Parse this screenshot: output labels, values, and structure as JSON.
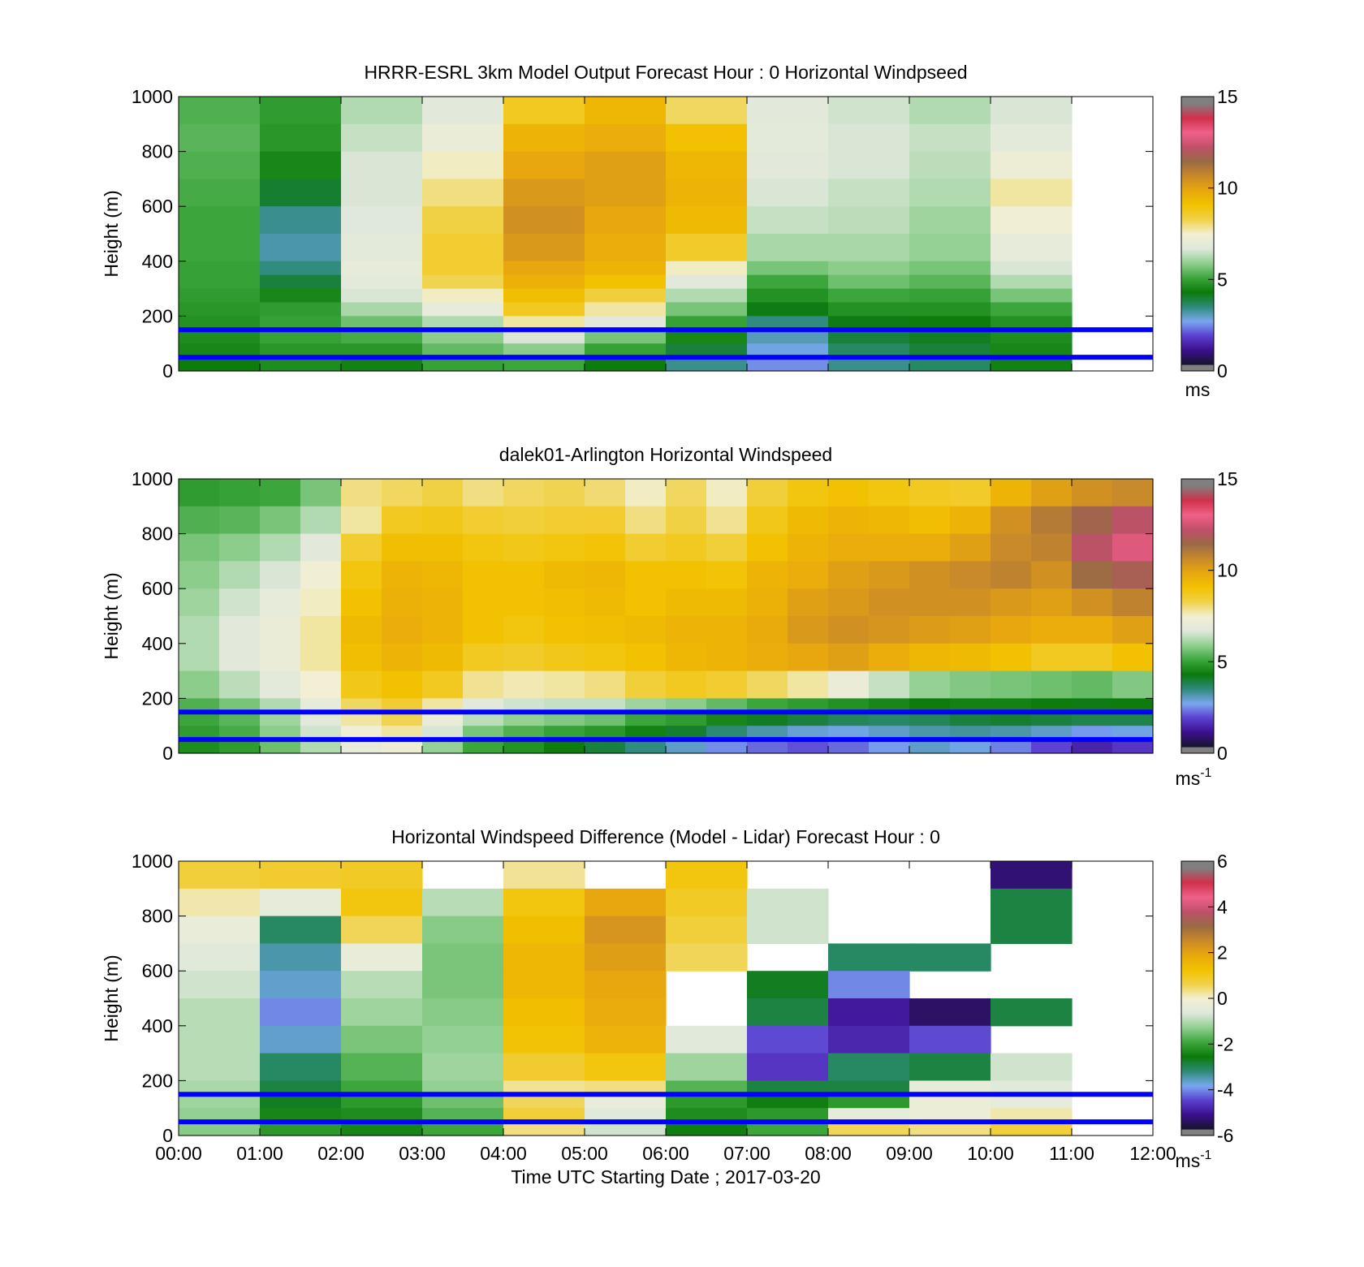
{
  "figure": {
    "x_ticks": [
      "00:00",
      "01:00",
      "02:00",
      "03:00",
      "04:00",
      "05:00",
      "06:00",
      "07:00",
      "08:00",
      "09:00",
      "10:00",
      "11:00",
      "12:00"
    ],
    "xlabel": "Time UTC  Starting Date ; 2017-03-20"
  },
  "colors": {
    "height_marker_line": "#0000ff",
    "windspeed_colormap": [
      "#15152a",
      "#3b0f8c",
      "#5b3fd0",
      "#7aa7f0",
      "#2e8b7a",
      "#0b7a0b",
      "#3ca63c",
      "#8fcf8f",
      "#dfe8dc",
      "#f2efd4",
      "#f0d24a",
      "#f2c200",
      "#e8a70e",
      "#c8892a",
      "#9a6a46",
      "#c0506a",
      "#f06088",
      "#d0304a",
      "#808080"
    ],
    "difference_colormap": [
      "#15152a",
      "#3b0f8c",
      "#5b3fd0",
      "#7aa7f0",
      "#2e8b7a",
      "#0b7a0b",
      "#3ca63c",
      "#8fcf8f",
      "#dfe8dc",
      "#f2efd4",
      "#f0d24a",
      "#f2c200",
      "#e8a70e",
      "#c8892a",
      "#9a6a46",
      "#c0506a",
      "#f06088",
      "#d0304a",
      "#808080"
    ]
  },
  "chart_data": [
    {
      "type": "heatmap",
      "title": "HRRR-ESRL 3km Model Output   Forecast Hour : 0 Horizontal Windpseed",
      "ylabel": "Height (m)",
      "ylim": [
        0,
        1000
      ],
      "yticks": [
        "0",
        "200",
        "400",
        "600",
        "800",
        "1000"
      ],
      "xlim": [
        0,
        12
      ],
      "colorbar": {
        "min": 0,
        "max": 15,
        "ticks": [
          "0",
          "5",
          "10",
          "15"
        ],
        "unit": "ms"
      },
      "marker_lines_height_m": [
        150,
        50
      ],
      "x_start_hours": [
        0,
        1,
        2,
        3,
        4,
        5,
        6,
        7,
        8,
        9,
        10
      ],
      "x_step_hours": 1,
      "y_top_m": [
        1000,
        900,
        800,
        700,
        600,
        500,
        400,
        350,
        300,
        250,
        200,
        150,
        100,
        50
      ],
      "values": [
        [
          5.2,
          4.8,
          6.2,
          6.8,
          8.8,
          9.5,
          8.2,
          6.8,
          6.5,
          6.2,
          6.6
        ],
        [
          5.3,
          4.7,
          6.4,
          7.2,
          9.6,
          9.8,
          9.2,
          6.9,
          6.6,
          6.4,
          6.9
        ],
        [
          5.2,
          4.4,
          6.6,
          7.6,
          10.0,
          10.2,
          9.5,
          6.8,
          6.6,
          6.3,
          7.3
        ],
        [
          5.1,
          3.9,
          6.6,
          8.0,
          10.4,
          10.2,
          9.6,
          6.6,
          6.4,
          6.2,
          7.8
        ],
        [
          5.0,
          3.2,
          6.7,
          8.4,
          10.6,
          10.0,
          9.4,
          6.4,
          6.3,
          6.0,
          7.4
        ],
        [
          5.0,
          3.0,
          6.9,
          8.6,
          10.4,
          9.8,
          8.7,
          6.1,
          6.1,
          5.9,
          7.0
        ],
        [
          4.9,
          3.3,
          7.0,
          8.6,
          10.0,
          9.6,
          7.6,
          5.6,
          5.8,
          5.6,
          6.6
        ],
        [
          4.9,
          3.8,
          6.9,
          8.3,
          9.7,
          9.2,
          6.8,
          5.0,
          5.5,
          5.3,
          6.2
        ],
        [
          4.8,
          4.4,
          6.6,
          7.6,
          9.3,
          8.5,
          6.2,
          4.6,
          5.0,
          4.9,
          5.6
        ],
        [
          4.7,
          4.8,
          6.1,
          7.0,
          8.8,
          7.8,
          5.6,
          4.1,
          4.6,
          4.6,
          5.0
        ],
        [
          4.6,
          4.9,
          5.5,
          6.2,
          7.8,
          6.8,
          4.9,
          3.3,
          4.1,
          4.2,
          4.6
        ],
        [
          4.5,
          4.9,
          5.1,
          5.8,
          6.6,
          5.6,
          4.4,
          2.9,
          3.8,
          4.0,
          4.5
        ],
        [
          4.4,
          4.7,
          4.7,
          5.4,
          5.8,
          4.9,
          3.8,
          2.6,
          3.5,
          3.8,
          4.4
        ],
        [
          4.2,
          4.5,
          4.3,
          4.9,
          5.0,
          4.2,
          3.2,
          2.3,
          3.2,
          3.5,
          4.3
        ]
      ]
    },
    {
      "type": "heatmap",
      "title": "dalek01-Arlington  Horizontal Windspeed",
      "ylabel": "Height (m)",
      "ylim": [
        0,
        1000
      ],
      "yticks": [
        "0",
        "200",
        "400",
        "600",
        "800",
        "1000"
      ],
      "xlim": [
        0,
        12
      ],
      "colorbar": {
        "min": 0,
        "max": 15,
        "ticks": [
          "0",
          "5",
          "10",
          "15"
        ],
        "unit": "ms-1"
      },
      "marker_lines_height_m": [
        150,
        50
      ],
      "x_start_hours": [
        0,
        0.5,
        1,
        1.5,
        2,
        2.5,
        3,
        3.5,
        4,
        4.5,
        5,
        5.5,
        6,
        6.5,
        7,
        7.5,
        8,
        8.5,
        9,
        9.5,
        10,
        10.5,
        11,
        11.5
      ],
      "x_step_hours": 0.5,
      "y_top_m": [
        1000,
        900,
        800,
        700,
        600,
        500,
        400,
        300,
        200,
        150,
        100,
        50
      ],
      "values": [
        [
          4.8,
          4.9,
          5.0,
          5.6,
          8.0,
          8.2,
          8.4,
          8.0,
          8.2,
          8.3,
          8.1,
          7.6,
          8.2,
          7.6,
          8.5,
          9.0,
          9.2,
          9.0,
          8.8,
          8.7,
          9.6,
          10.2,
          10.6,
          10.8
        ],
        [
          5.2,
          5.3,
          5.6,
          6.2,
          7.8,
          8.8,
          8.9,
          8.6,
          8.5,
          8.6,
          8.6,
          8.0,
          8.4,
          7.9,
          8.9,
          9.4,
          9.6,
          9.5,
          9.3,
          9.6,
          10.6,
          11.2,
          11.8,
          12.4
        ],
        [
          5.6,
          5.8,
          6.2,
          6.8,
          8.6,
          9.3,
          9.3,
          9.0,
          8.9,
          9.0,
          9.1,
          8.6,
          8.8,
          8.5,
          9.2,
          9.6,
          9.8,
          9.8,
          9.8,
          10.2,
          10.8,
          11.0,
          12.4,
          13.0
        ],
        [
          5.8,
          6.2,
          6.6,
          7.4,
          9.0,
          9.6,
          9.5,
          9.2,
          9.2,
          9.4,
          9.5,
          9.2,
          9.2,
          9.1,
          9.6,
          9.8,
          10.2,
          10.4,
          10.6,
          10.8,
          11.0,
          10.6,
          11.6,
          12.0
        ],
        [
          6.0,
          6.5,
          7.0,
          7.6,
          9.2,
          9.7,
          9.6,
          9.2,
          9.2,
          9.3,
          9.4,
          9.2,
          9.4,
          9.4,
          9.7,
          10.2,
          10.4,
          10.6,
          10.6,
          10.6,
          10.4,
          10.2,
          10.6,
          11.0
        ],
        [
          6.2,
          6.8,
          7.2,
          7.8,
          9.4,
          9.8,
          9.6,
          9.2,
          9.0,
          9.2,
          9.3,
          9.4,
          9.6,
          9.6,
          9.9,
          10.4,
          10.6,
          10.5,
          10.3,
          10.2,
          10.0,
          9.8,
          9.8,
          10.2
        ],
        [
          6.2,
          6.8,
          7.2,
          7.8,
          9.3,
          9.6,
          9.4,
          8.8,
          8.7,
          8.9,
          9.0,
          9.2,
          9.5,
          9.6,
          9.8,
          10.0,
          10.2,
          9.8,
          9.5,
          9.4,
          9.2,
          8.8,
          8.8,
          9.2
        ],
        [
          5.8,
          6.3,
          6.9,
          7.5,
          8.9,
          9.2,
          8.8,
          7.9,
          7.7,
          7.8,
          8.0,
          8.5,
          8.8,
          8.6,
          8.2,
          7.8,
          7.2,
          6.4,
          5.9,
          5.7,
          5.6,
          5.5,
          5.4,
          5.7
        ],
        [
          5.2,
          5.6,
          6.2,
          7.0,
          8.2,
          8.6,
          7.8,
          6.8,
          6.5,
          6.4,
          6.4,
          6.0,
          5.8,
          5.4,
          5.0,
          4.8,
          4.6,
          4.4,
          4.2,
          4.3,
          4.3,
          4.2,
          4.1,
          4.2
        ],
        [
          5.0,
          5.3,
          6.0,
          6.8,
          7.8,
          8.3,
          7.2,
          6.3,
          5.9,
          5.7,
          5.5,
          5.0,
          4.8,
          4.4,
          4.0,
          3.8,
          3.6,
          3.5,
          3.6,
          3.8,
          3.9,
          3.8,
          3.7,
          3.7
        ],
        [
          4.8,
          5.1,
          5.8,
          6.5,
          7.4,
          7.8,
          6.6,
          5.6,
          5.2,
          4.9,
          4.7,
          4.3,
          3.9,
          3.4,
          3.0,
          2.7,
          2.6,
          2.8,
          3.0,
          3.1,
          3.0,
          2.8,
          2.4,
          2.6
        ],
        [
          4.5,
          4.8,
          5.5,
          6.2,
          7.0,
          7.3,
          5.9,
          5.0,
          4.6,
          4.2,
          3.8,
          3.3,
          2.8,
          2.3,
          2.0,
          1.8,
          2.0,
          2.4,
          2.8,
          2.6,
          2.2,
          1.7,
          1.2,
          1.5
        ]
      ]
    },
    {
      "type": "heatmap",
      "title": "Horizontal Windspeed Difference (Model - Lidar) Forecast Hour : 0",
      "ylabel": "Height (m)",
      "xlabel": "Time UTC  Starting Date ; 2017-03-20",
      "ylim": [
        0,
        1000
      ],
      "yticks": [
        "0",
        "200",
        "400",
        "600",
        "800",
        "1000"
      ],
      "xlim": [
        0,
        12
      ],
      "colorbar": {
        "min": -6,
        "max": 6,
        "ticks": [
          "-6",
          "-4",
          "-2",
          "0",
          "2",
          "4",
          "6"
        ],
        "unit": "ms-1"
      },
      "marker_lines_height_m": [
        150,
        50
      ],
      "x_start_hours": [
        0,
        1,
        2,
        3,
        4,
        5,
        6,
        7,
        8,
        9,
        10
      ],
      "x_step_hours": 1,
      "y_top_m": [
        1000,
        900,
        800,
        700,
        600,
        500,
        400,
        300,
        200,
        150,
        100,
        50
      ],
      "values": [
        [
          0.8,
          0.9,
          1.0,
          null,
          0.3,
          null,
          1.2,
          null,
          null,
          null,
          -5.5
        ],
        [
          0.2,
          -0.4,
          1.2,
          -1.0,
          1.2,
          2.0,
          1.0,
          -0.8,
          null,
          null,
          -3.0
        ],
        [
          -0.3,
          -3.2,
          0.6,
          -1.4,
          1.4,
          2.4,
          0.8,
          -0.8,
          null,
          null,
          -3.0
        ],
        [
          -0.6,
          -3.6,
          -0.3,
          -1.5,
          1.6,
          2.2,
          0.6,
          null,
          -3.2,
          -3.2,
          null
        ],
        [
          -0.8,
          -3.8,
          -1.0,
          -1.5,
          1.6,
          2.0,
          null,
          -2.8,
          -4.2,
          null,
          null
        ],
        [
          -1.0,
          -4.2,
          -1.2,
          -1.4,
          1.4,
          1.9,
          null,
          -3.0,
          -5.2,
          -5.6,
          -3.0
        ],
        [
          -1.0,
          -3.8,
          -1.5,
          -1.3,
          1.3,
          1.7,
          -0.6,
          -4.6,
          -5.0,
          -4.6,
          null
        ],
        [
          -1.0,
          -3.2,
          -1.8,
          -1.2,
          0.9,
          1.2,
          -1.2,
          -4.8,
          -3.2,
          -3.0,
          -0.8
        ],
        [
          -1.1,
          -3.0,
          -2.0,
          -1.3,
          0.3,
          0.4,
          -1.8,
          -3.0,
          -3.0,
          -0.4,
          -0.6
        ],
        [
          -1.2,
          -2.8,
          -2.2,
          -1.6,
          0.6,
          -0.3,
          -2.2,
          -2.6,
          -2.2,
          -0.2,
          -0.4
        ],
        [
          -1.3,
          -2.5,
          -2.4,
          -1.8,
          0.8,
          -0.6,
          -2.4,
          -2.2,
          -0.4,
          -0.2,
          0.2
        ],
        [
          -1.4,
          -2.2,
          -2.5,
          -2.0,
          0.4,
          -0.8,
          -2.6,
          -2.0,
          0.6,
          0.4,
          0.8
        ]
      ]
    }
  ]
}
